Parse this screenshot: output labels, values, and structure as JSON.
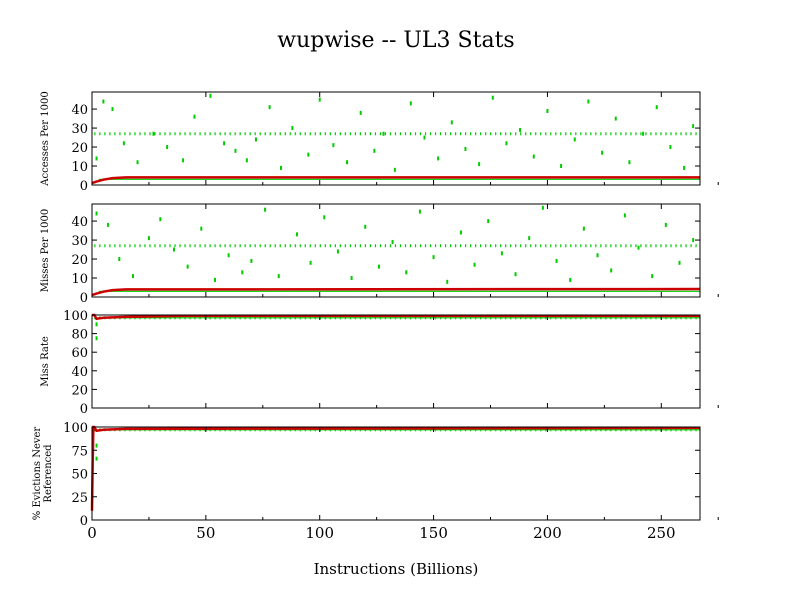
{
  "title": "wupwise -- UL3  Stats",
  "xlabel": "Instructions (Billions)",
  "colors": {
    "sample": "#00cc00",
    "cumulative": "#cc0000",
    "axis": "#000000"
  },
  "chart_data": [
    {
      "type": "scatter",
      "ylabel": "Accesses Per 1000",
      "xlim": [
        0,
        267
      ],
      "ylim": [
        0,
        49
      ],
      "yticks": [
        0,
        10,
        20,
        30,
        40
      ],
      "sample_band": 27,
      "sample_points": [
        [
          2,
          14
        ],
        [
          5,
          44
        ],
        [
          9,
          40
        ],
        [
          14,
          22
        ],
        [
          20,
          12
        ],
        [
          27,
          27
        ],
        [
          33,
          20
        ],
        [
          40,
          13
        ],
        [
          45,
          36
        ],
        [
          52,
          47
        ],
        [
          58,
          22
        ],
        [
          63,
          18
        ],
        [
          68,
          13
        ],
        [
          72,
          24
        ],
        [
          78,
          41
        ],
        [
          83,
          9
        ],
        [
          88,
          30
        ],
        [
          95,
          16
        ],
        [
          100,
          45
        ],
        [
          106,
          21
        ],
        [
          112,
          12
        ],
        [
          118,
          38
        ],
        [
          124,
          18
        ],
        [
          128,
          27
        ],
        [
          133,
          8
        ],
        [
          140,
          43
        ],
        [
          146,
          25
        ],
        [
          152,
          14
        ],
        [
          158,
          33
        ],
        [
          164,
          19
        ],
        [
          170,
          11
        ],
        [
          176,
          46
        ],
        [
          182,
          22
        ],
        [
          188,
          29
        ],
        [
          194,
          15
        ],
        [
          200,
          39
        ],
        [
          206,
          10
        ],
        [
          212,
          24
        ],
        [
          218,
          44
        ],
        [
          224,
          17
        ],
        [
          230,
          35
        ],
        [
          236,
          12
        ],
        [
          242,
          27
        ],
        [
          248,
          41
        ],
        [
          254,
          20
        ],
        [
          260,
          9
        ],
        [
          264,
          31
        ]
      ],
      "cumulative": [
        [
          0,
          1
        ],
        [
          2,
          1.8
        ],
        [
          5,
          2.8
        ],
        [
          9,
          3.6
        ],
        [
          15,
          4
        ],
        [
          267,
          4
        ]
      ]
    },
    {
      "type": "scatter",
      "ylabel": "Misses Per 1000",
      "xlim": [
        0,
        267
      ],
      "ylim": [
        0,
        49
      ],
      "yticks": [
        0,
        10,
        20,
        30,
        40
      ],
      "sample_band": 27,
      "sample_points": [
        [
          2,
          44
        ],
        [
          7,
          38
        ],
        [
          12,
          20
        ],
        [
          18,
          11
        ],
        [
          25,
          31
        ],
        [
          30,
          41
        ],
        [
          36,
          25
        ],
        [
          42,
          16
        ],
        [
          48,
          36
        ],
        [
          54,
          9
        ],
        [
          60,
          22
        ],
        [
          66,
          13
        ],
        [
          70,
          19
        ],
        [
          76,
          46
        ],
        [
          82,
          11
        ],
        [
          90,
          33
        ],
        [
          96,
          18
        ],
        [
          102,
          42
        ],
        [
          108,
          24
        ],
        [
          114,
          10
        ],
        [
          120,
          37
        ],
        [
          126,
          16
        ],
        [
          132,
          29
        ],
        [
          138,
          13
        ],
        [
          144,
          45
        ],
        [
          150,
          21
        ],
        [
          156,
          8
        ],
        [
          162,
          34
        ],
        [
          168,
          17
        ],
        [
          174,
          40
        ],
        [
          180,
          23
        ],
        [
          186,
          12
        ],
        [
          192,
          31
        ],
        [
          198,
          47
        ],
        [
          204,
          19
        ],
        [
          210,
          9
        ],
        [
          216,
          36
        ],
        [
          222,
          22
        ],
        [
          228,
          14
        ],
        [
          234,
          43
        ],
        [
          240,
          26
        ],
        [
          246,
          11
        ],
        [
          252,
          38
        ],
        [
          258,
          18
        ],
        [
          264,
          30
        ]
      ],
      "cumulative": [
        [
          0,
          1
        ],
        [
          2,
          1.8
        ],
        [
          5,
          2.8
        ],
        [
          9,
          3.6
        ],
        [
          15,
          4
        ],
        [
          267,
          4.2
        ]
      ]
    },
    {
      "type": "scatter",
      "ylabel": "Miss Rate",
      "xlim": [
        0,
        267
      ],
      "ylim": [
        0,
        100
      ],
      "yticks": [
        0,
        20,
        40,
        60,
        80,
        100
      ],
      "sample_band": 97,
      "sample_points": [
        [
          2,
          75
        ],
        [
          2,
          90
        ]
      ],
      "cumulative": [
        [
          0,
          100
        ],
        [
          1,
          100
        ],
        [
          2,
          96
        ],
        [
          5,
          97
        ],
        [
          15,
          98
        ],
        [
          40,
          99
        ],
        [
          267,
          99
        ]
      ]
    },
    {
      "type": "scatter",
      "ylabel": "% Evictions Never Referenced",
      "xlim": [
        0,
        267
      ],
      "ylim": [
        0,
        100
      ],
      "yticks": [
        0,
        25,
        50,
        75,
        100
      ],
      "sample_band": 97,
      "sample_points": [
        [
          2,
          66
        ],
        [
          2,
          80
        ]
      ],
      "cumulative": [
        [
          0,
          10
        ],
        [
          0.3,
          60
        ],
        [
          0.6,
          100
        ],
        [
          1,
          100
        ],
        [
          2,
          96
        ],
        [
          5,
          97
        ],
        [
          15,
          98
        ],
        [
          267,
          99
        ]
      ]
    }
  ],
  "xticks": [
    0,
    50,
    100,
    150,
    200,
    250
  ]
}
